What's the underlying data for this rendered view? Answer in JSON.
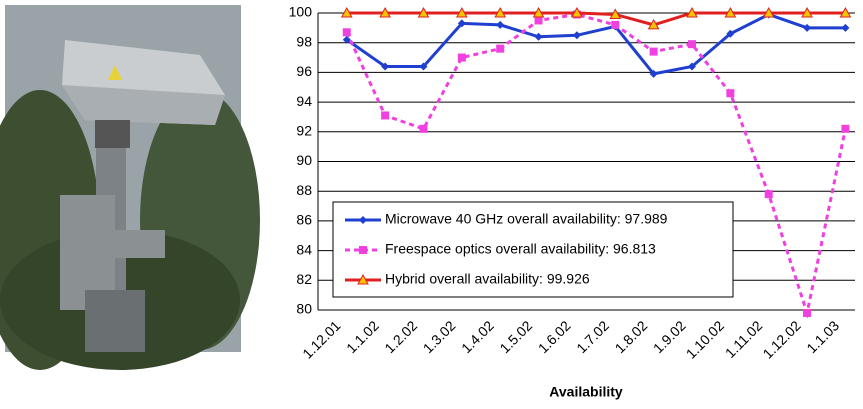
{
  "chart_data": {
    "type": "line",
    "x_label": "Availability",
    "categories": [
      "1.12.01",
      "1.1.02",
      "1.2.02",
      "1.3.02",
      "1.4.02",
      "1.5.02",
      "1.6.02",
      "1.7.02",
      "1.8.02",
      "1.9.02",
      "1.10.02",
      "1.11.02",
      "1.12.02",
      "1.1.03"
    ],
    "series": [
      {
        "name": "Microwave 40 GHz overall availability: 97.989",
        "color": "#1f3fd0",
        "marker": "diamond",
        "dashed": false,
        "values": [
          98.2,
          96.4,
          96.4,
          99.3,
          99.2,
          98.4,
          98.5,
          99.1,
          95.9,
          96.4,
          98.6,
          99.9,
          99.0,
          99.0
        ]
      },
      {
        "name": "Freespace optics overall availability: 96.813",
        "color": "#f040e0",
        "marker": "square",
        "dashed": true,
        "values": [
          98.7,
          93.1,
          92.2,
          97.0,
          97.6,
          99.5,
          99.9,
          99.2,
          97.4,
          97.9,
          94.6,
          87.8,
          79.8,
          92.2
        ]
      },
      {
        "name": "Hybrid overall availability: 99.926",
        "color": "#e02020",
        "marker": "triangle",
        "dashed": false,
        "values": [
          100,
          100,
          100,
          100,
          100,
          100,
          100,
          99.9,
          99.2,
          100,
          100,
          100,
          100,
          100
        ]
      }
    ],
    "ylim": [
      80,
      100
    ],
    "yticks": [
      80,
      82,
      84,
      86,
      88,
      90,
      92,
      94,
      96,
      98,
      100
    ],
    "grid": true
  }
}
